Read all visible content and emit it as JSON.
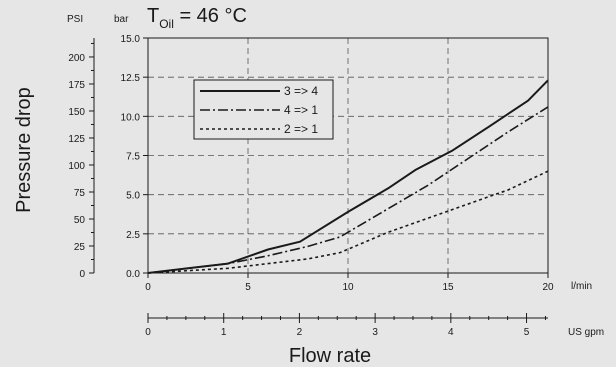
{
  "chart_data": {
    "type": "line",
    "title_main": "T",
    "title_sub": "Oil",
    "title_rest": " = 46 °C",
    "xlabel": "Flow rate",
    "ylabel": "Pressure drop",
    "x_unit": "l/min",
    "x2_unit": "US gpm",
    "y_unit_bar": "bar",
    "y_unit_psi": "PSI",
    "xlim": [
      0,
      20
    ],
    "ylim": [
      0,
      15
    ],
    "x_ticks": [
      "0",
      "5",
      "10",
      "15",
      "20"
    ],
    "x2_ticks": [
      "0",
      "1",
      "2",
      "3",
      "4",
      "5"
    ],
    "y_ticks_bar": [
      "0.0",
      "2.5",
      "5.0",
      "7.5",
      "10.0",
      "12.5",
      "15.0"
    ],
    "y_ticks_psi": [
      "0",
      "25",
      "50",
      "75",
      "100",
      "125",
      "150",
      "175",
      "200"
    ],
    "grid": true,
    "legend_position": "upper-left-inside",
    "series": [
      {
        "name": "3 => 4",
        "style": "solid",
        "x": [
          0,
          2,
          4,
          6,
          7.6,
          10,
          12,
          13.4,
          15.2,
          17,
          19,
          20
        ],
        "y": [
          0,
          0.3,
          0.6,
          1.5,
          2.0,
          3.9,
          5.4,
          6.6,
          7.8,
          9.3,
          11.0,
          12.3
        ]
      },
      {
        "name": "4 => 1",
        "style": "dash-dot",
        "x": [
          0,
          2,
          4,
          6,
          8,
          9.6,
          12,
          14,
          16,
          18,
          20
        ],
        "y": [
          0,
          0.3,
          0.6,
          1.1,
          1.7,
          2.3,
          4.1,
          5.6,
          7.3,
          9.0,
          10.6
        ]
      },
      {
        "name": "2 => 1",
        "style": "dotted",
        "x": [
          0,
          2,
          4,
          6,
          8,
          9.6,
          12,
          14,
          16,
          18,
          20
        ],
        "y": [
          0,
          0.15,
          0.3,
          0.6,
          0.9,
          1.3,
          2.6,
          3.5,
          4.4,
          5.3,
          6.5
        ]
      }
    ]
  }
}
